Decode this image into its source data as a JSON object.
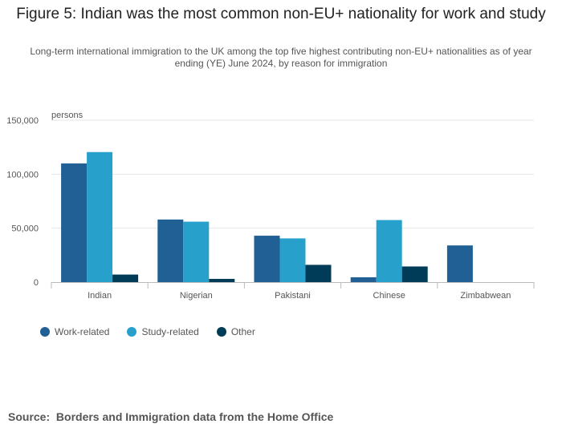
{
  "title": "Figure 5: Indian was the most common non-EU+ nationality for work and study",
  "subtitle": "Long-term international immigration to the UK among the top five highest contributing non-EU+ nationalities as of year ending (YE) June 2024, by reason for immigration",
  "source_label": "Source:",
  "source_text": "Borders and Immigration data from the Home Office",
  "chart_data": {
    "type": "bar",
    "title": "Figure 5: Indian was the most common non-EU+ nationality for work and study",
    "ylabel": "persons",
    "xlabel": "",
    "ylim": [
      0,
      150000
    ],
    "yticks": [
      0,
      50000,
      100000,
      150000
    ],
    "ytick_labels": [
      "0",
      "50,000",
      "100,000",
      "150,000"
    ],
    "categories": [
      "Indian",
      "Nigerian",
      "Pakistani",
      "Chinese",
      "Zimbabwean"
    ],
    "series": [
      {
        "name": "Work-related",
        "color": "#206095",
        "values": [
          110000,
          58000,
          43000,
          4500,
          34000
        ]
      },
      {
        "name": "Study-related",
        "color": "#27a0cc",
        "values": [
          120500,
          56000,
          40500,
          57500,
          0
        ]
      },
      {
        "name": "Other",
        "color": "#003c57",
        "values": [
          7000,
          3000,
          16000,
          14500,
          0
        ]
      }
    ],
    "grid": true,
    "legend_position": "bottom-left"
  }
}
